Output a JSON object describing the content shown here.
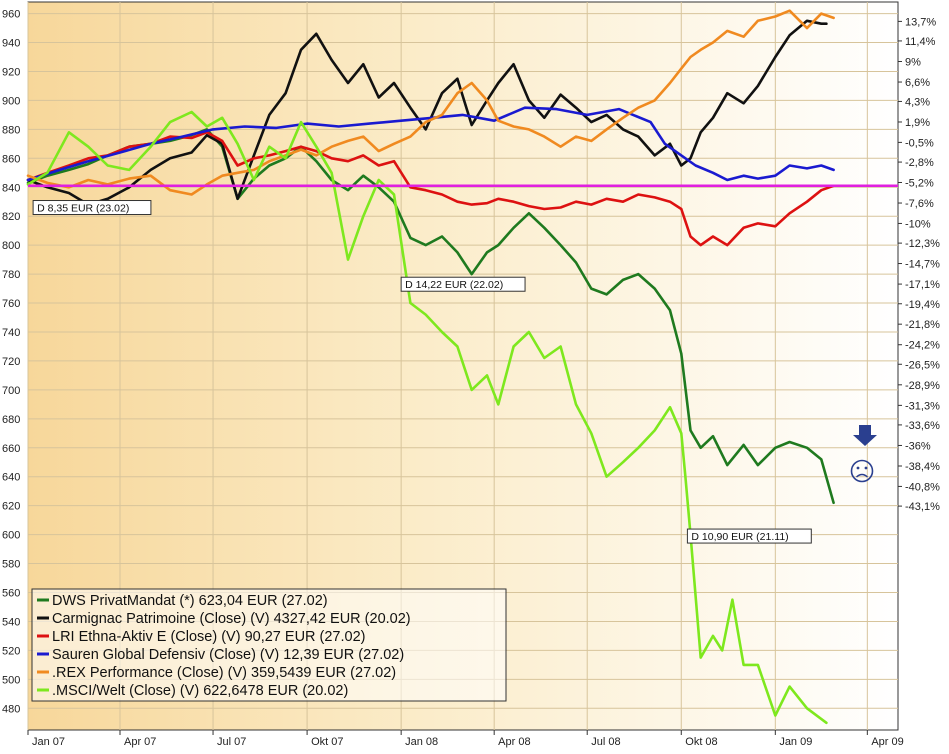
{
  "chart_data": {
    "type": "line",
    "ylim": [
      465,
      968
    ],
    "xlim": [
      "2007-01-01",
      "2009-05-01"
    ],
    "left_ticks": [
      480,
      500,
      520,
      540,
      560,
      580,
      600,
      620,
      640,
      660,
      680,
      700,
      720,
      740,
      760,
      780,
      800,
      820,
      840,
      860,
      880,
      900,
      920,
      940,
      960
    ],
    "right_ticks": [
      {
        "label": "13,7%",
        "y": 954.6
      },
      {
        "label": "11,4%",
        "y": 941.1
      },
      {
        "label": "9%",
        "y": 926.9
      },
      {
        "label": "6,6%",
        "y": 912.7
      },
      {
        "label": "4,3%",
        "y": 899.3
      },
      {
        "label": "1,9%",
        "y": 885.1
      },
      {
        "label": "-0,5%",
        "y": 871.0
      },
      {
        "label": "-2,8%",
        "y": 857.4
      },
      {
        "label": "-5,2%",
        "y": 843.3
      },
      {
        "label": "-7,6%",
        "y": 829.1
      },
      {
        "label": "-10%",
        "y": 815.0
      },
      {
        "label": "-12,3%",
        "y": 801.4
      },
      {
        "label": "-14,7%",
        "y": 787.3
      },
      {
        "label": "-17,1%",
        "y": 773.1
      },
      {
        "label": "-19,4%",
        "y": 759.5
      },
      {
        "label": "-21,8%",
        "y": 745.4
      },
      {
        "label": "-24,2%",
        "y": 731.2
      },
      {
        "label": "-26,5%",
        "y": 717.7
      },
      {
        "label": "-28,9%",
        "y": 703.5
      },
      {
        "label": "-31,3%",
        "y": 689.3
      },
      {
        "label": "-33,6%",
        "y": 675.8
      },
      {
        "label": "-36%",
        "y": 661.6
      },
      {
        "label": "-38,4%",
        "y": 647.4
      },
      {
        "label": "-40,8%",
        "y": 633.3
      },
      {
        "label": "-43,1%",
        "y": 619.7
      }
    ],
    "x_ticks": [
      {
        "label": "Jan 07",
        "date": "2007-01-01"
      },
      {
        "label": "Apr 07",
        "date": "2007-04-01"
      },
      {
        "label": "Jul 07",
        "date": "2007-07-01"
      },
      {
        "label": "Okt 07",
        "date": "2007-10-01"
      },
      {
        "label": "Jan 08",
        "date": "2008-01-01"
      },
      {
        "label": "Apr 08",
        "date": "2008-04-01"
      },
      {
        "label": "Jul 08",
        "date": "2008-07-01"
      },
      {
        "label": "Okt 08",
        "date": "2008-10-01"
      },
      {
        "label": "Jan 09",
        "date": "2009-01-01"
      },
      {
        "label": "Apr 09",
        "date": "2009-04-01"
      }
    ],
    "reference_line": {
      "y": 841,
      "color": "#e020e0"
    },
    "annotations": [
      {
        "text": "D 8,35 EUR (23.02)",
        "date": "2007-01-06",
        "y": 826
      },
      {
        "text": "D 14,22 EUR (22.02)",
        "date": "2008-01-01",
        "y": 773
      },
      {
        "text": "D 10,90 EUR (21.11)",
        "date": "2008-10-07",
        "y": 599
      }
    ],
    "status_icons": [
      "down-arrow-icon",
      "sad-face-icon"
    ],
    "legend": {
      "position": "bottom-left",
      "entries": [
        {
          "label": "DWS PrivatMandat (*) 623,04 EUR (27.02)",
          "color": "#1f7a1f"
        },
        {
          "label": "Carmignac Patrimoine (Close) (V) 4327,42 EUR (20.02)",
          "color": "#111111"
        },
        {
          "label": "LRI Ethna-Aktiv E (Close) (V) 90,27 EUR (27.02)",
          "color": "#dd1111"
        },
        {
          "label": "Sauren Global Defensiv (Close) (V) 12,39 EUR (27.02)",
          "color": "#1a1ad0"
        },
        {
          "label": ".REX Performance (Close) (V) 359,5439 EUR (27.02)",
          "color": "#f08a20"
        },
        {
          "label": ".MSCI/Welt (Close) (V) 622,6478 EUR (20.02)",
          "color": "#7ee81e"
        }
      ]
    },
    "series": [
      {
        "color": "#1f7a1f",
        "x": [
          "2007-01-01",
          "2007-01-20",
          "2007-02-10",
          "2007-03-01",
          "2007-03-20",
          "2007-04-10",
          "2007-05-01",
          "2007-05-20",
          "2007-06-10",
          "2007-06-25",
          "2007-07-10",
          "2007-07-25",
          "2007-08-10",
          "2007-08-25",
          "2007-09-10",
          "2007-09-25",
          "2007-10-10",
          "2007-10-25",
          "2007-11-10",
          "2007-11-25",
          "2007-12-10",
          "2007-12-25",
          "2008-01-10",
          "2008-01-25",
          "2008-02-10",
          "2008-02-25",
          "2008-03-10",
          "2008-03-25",
          "2008-04-05",
          "2008-04-20",
          "2008-05-05",
          "2008-05-20",
          "2008-06-05",
          "2008-06-20",
          "2008-07-05",
          "2008-07-20",
          "2008-08-05",
          "2008-08-20",
          "2008-09-05",
          "2008-09-20",
          "2008-10-01",
          "2008-10-10",
          "2008-10-20",
          "2008-11-01",
          "2008-11-15",
          "2008-12-01",
          "2008-12-15",
          "2009-01-01",
          "2009-01-15",
          "2009-02-01",
          "2009-02-15",
          "2009-02-27"
        ],
        "y": [
          843,
          848,
          852,
          856,
          862,
          868,
          870,
          872,
          876,
          880,
          868,
          832,
          846,
          855,
          860,
          868,
          858,
          845,
          838,
          848,
          840,
          830,
          805,
          800,
          806,
          795,
          780,
          795,
          800,
          812,
          822,
          812,
          800,
          788,
          770,
          766,
          776,
          780,
          770,
          755,
          725,
          672,
          660,
          668,
          648,
          662,
          648,
          660,
          664,
          660,
          652,
          622
        ]
      },
      {
        "color": "#111111",
        "x": [
          "2007-01-01",
          "2007-01-20",
          "2007-02-10",
          "2007-03-01",
          "2007-03-20",
          "2007-04-10",
          "2007-05-01",
          "2007-05-20",
          "2007-06-10",
          "2007-06-25",
          "2007-07-10",
          "2007-07-25",
          "2007-08-10",
          "2007-08-25",
          "2007-09-10",
          "2007-09-25",
          "2007-10-10",
          "2007-10-25",
          "2007-11-10",
          "2007-11-25",
          "2007-12-10",
          "2007-12-25",
          "2008-01-10",
          "2008-01-25",
          "2008-02-10",
          "2008-02-25",
          "2008-03-10",
          "2008-03-25",
          "2008-04-05",
          "2008-04-20",
          "2008-05-05",
          "2008-05-20",
          "2008-06-05",
          "2008-06-20",
          "2008-07-05",
          "2008-07-20",
          "2008-08-05",
          "2008-08-20",
          "2008-09-05",
          "2008-09-20",
          "2008-10-01",
          "2008-10-10",
          "2008-10-20",
          "2008-11-01",
          "2008-11-15",
          "2008-12-01",
          "2008-12-15",
          "2009-01-01",
          "2009-01-15",
          "2009-02-01",
          "2009-02-15",
          "2009-02-20"
        ],
        "y": [
          845,
          840,
          836,
          828,
          832,
          840,
          852,
          860,
          864,
          876,
          870,
          832,
          862,
          890,
          905,
          935,
          946,
          928,
          912,
          925,
          902,
          912,
          895,
          880,
          905,
          915,
          883,
          900,
          912,
          925,
          900,
          888,
          904,
          895,
          885,
          890,
          880,
          875,
          862,
          870,
          855,
          860,
          878,
          888,
          905,
          898,
          910,
          930,
          945,
          955,
          953,
          953
        ]
      },
      {
        "color": "#dd1111",
        "x": [
          "2007-01-01",
          "2007-01-20",
          "2007-02-10",
          "2007-03-01",
          "2007-03-20",
          "2007-04-10",
          "2007-05-01",
          "2007-05-20",
          "2007-06-10",
          "2007-06-25",
          "2007-07-10",
          "2007-07-25",
          "2007-08-10",
          "2007-08-25",
          "2007-09-10",
          "2007-09-25",
          "2007-10-10",
          "2007-10-25",
          "2007-11-10",
          "2007-11-25",
          "2007-12-10",
          "2007-12-25",
          "2008-01-10",
          "2008-01-25",
          "2008-02-10",
          "2008-02-25",
          "2008-03-10",
          "2008-03-25",
          "2008-04-05",
          "2008-04-20",
          "2008-05-05",
          "2008-05-20",
          "2008-06-05",
          "2008-06-20",
          "2008-07-05",
          "2008-07-20",
          "2008-08-05",
          "2008-08-20",
          "2008-09-05",
          "2008-09-20",
          "2008-10-01",
          "2008-10-10",
          "2008-10-20",
          "2008-11-01",
          "2008-11-15",
          "2008-12-01",
          "2008-12-15",
          "2009-01-01",
          "2009-01-15",
          "2009-02-01",
          "2009-02-15",
          "2009-02-27"
        ],
        "y": [
          845,
          850,
          855,
          860,
          862,
          868,
          870,
          875,
          874,
          878,
          872,
          855,
          860,
          862,
          865,
          868,
          865,
          860,
          858,
          862,
          855,
          858,
          840,
          838,
          835,
          830,
          828,
          829,
          832,
          830,
          827,
          825,
          826,
          830,
          828,
          832,
          830,
          835,
          833,
          830,
          825,
          806,
          800,
          806,
          800,
          812,
          815,
          813,
          822,
          830,
          838,
          841
        ]
      },
      {
        "color": "#1a1ad0",
        "x": [
          "2007-01-01",
          "2007-02-01",
          "2007-03-01",
          "2007-04-01",
          "2007-05-01",
          "2007-06-01",
          "2007-07-01",
          "2007-08-01",
          "2007-09-01",
          "2007-10-01",
          "2007-11-01",
          "2007-12-01",
          "2008-01-01",
          "2008-02-01",
          "2008-03-01",
          "2008-04-01",
          "2008-05-01",
          "2008-06-01",
          "2008-07-01",
          "2008-08-01",
          "2008-09-01",
          "2008-09-15",
          "2008-10-01",
          "2008-10-15",
          "2008-11-01",
          "2008-11-15",
          "2008-12-01",
          "2008-12-15",
          "2009-01-01",
          "2009-01-15",
          "2009-02-01",
          "2009-02-15",
          "2009-02-27"
        ],
        "y": [
          845,
          852,
          858,
          864,
          870,
          875,
          880,
          882,
          881,
          884,
          882,
          884,
          886,
          888,
          890,
          886,
          895,
          894,
          890,
          894,
          885,
          870,
          862,
          855,
          850,
          845,
          848,
          846,
          848,
          855,
          853,
          855,
          852
        ]
      },
      {
        "color": "#f08a20",
        "x": [
          "2007-01-01",
          "2007-01-20",
          "2007-02-10",
          "2007-03-01",
          "2007-03-20",
          "2007-04-10",
          "2007-05-01",
          "2007-05-20",
          "2007-06-10",
          "2007-06-25",
          "2007-07-10",
          "2007-07-25",
          "2007-08-10",
          "2007-08-25",
          "2007-09-10",
          "2007-09-25",
          "2007-10-10",
          "2007-10-25",
          "2007-11-10",
          "2007-11-25",
          "2007-12-10",
          "2007-12-25",
          "2008-01-10",
          "2008-01-25",
          "2008-02-10",
          "2008-02-25",
          "2008-03-10",
          "2008-03-25",
          "2008-04-05",
          "2008-04-20",
          "2008-05-05",
          "2008-05-20",
          "2008-06-05",
          "2008-06-20",
          "2008-07-05",
          "2008-07-20",
          "2008-08-05",
          "2008-08-20",
          "2008-09-05",
          "2008-09-20",
          "2008-10-01",
          "2008-10-10",
          "2008-10-20",
          "2008-11-01",
          "2008-11-15",
          "2008-12-01",
          "2008-12-15",
          "2009-01-01",
          "2009-01-15",
          "2009-02-01",
          "2009-02-15",
          "2009-02-27"
        ],
        "y": [
          848,
          843,
          840,
          845,
          842,
          846,
          848,
          838,
          835,
          842,
          848,
          850,
          852,
          858,
          862,
          866,
          862,
          868,
          872,
          875,
          865,
          870,
          875,
          885,
          890,
          905,
          912,
          900,
          886,
          882,
          880,
          875,
          868,
          875,
          872,
          880,
          888,
          895,
          900,
          912,
          922,
          930,
          935,
          940,
          948,
          944,
          955,
          958,
          962,
          950,
          960,
          957
        ]
      },
      {
        "color": "#7ee81e",
        "x": [
          "2007-01-01",
          "2007-01-20",
          "2007-02-10",
          "2007-03-01",
          "2007-03-20",
          "2007-04-10",
          "2007-05-01",
          "2007-05-20",
          "2007-06-10",
          "2007-06-25",
          "2007-07-10",
          "2007-07-25",
          "2007-08-10",
          "2007-08-25",
          "2007-09-10",
          "2007-09-25",
          "2007-10-10",
          "2007-10-25",
          "2007-11-10",
          "2007-11-25",
          "2007-12-10",
          "2007-12-25",
          "2008-01-10",
          "2008-01-25",
          "2008-02-10",
          "2008-02-25",
          "2008-03-10",
          "2008-03-25",
          "2008-04-05",
          "2008-04-20",
          "2008-05-05",
          "2008-05-20",
          "2008-06-05",
          "2008-06-20",
          "2008-07-05",
          "2008-07-20",
          "2008-08-05",
          "2008-08-20",
          "2008-09-05",
          "2008-09-20",
          "2008-10-01",
          "2008-10-05",
          "2008-10-10",
          "2008-10-20",
          "2008-11-01",
          "2008-11-10",
          "2008-11-20",
          "2008-12-01",
          "2008-12-15",
          "2009-01-01",
          "2009-01-15",
          "2009-02-01",
          "2009-02-20"
        ],
        "y": [
          842,
          850,
          878,
          868,
          855,
          852,
          868,
          885,
          892,
          882,
          888,
          870,
          845,
          868,
          860,
          885,
          868,
          850,
          790,
          820,
          845,
          835,
          760,
          752,
          740,
          730,
          700,
          710,
          690,
          730,
          740,
          722,
          730,
          690,
          670,
          640,
          650,
          660,
          672,
          688,
          670,
          640,
          600,
          515,
          530,
          520,
          555,
          510,
          510,
          475,
          495,
          480,
          470
        ]
      }
    ]
  }
}
